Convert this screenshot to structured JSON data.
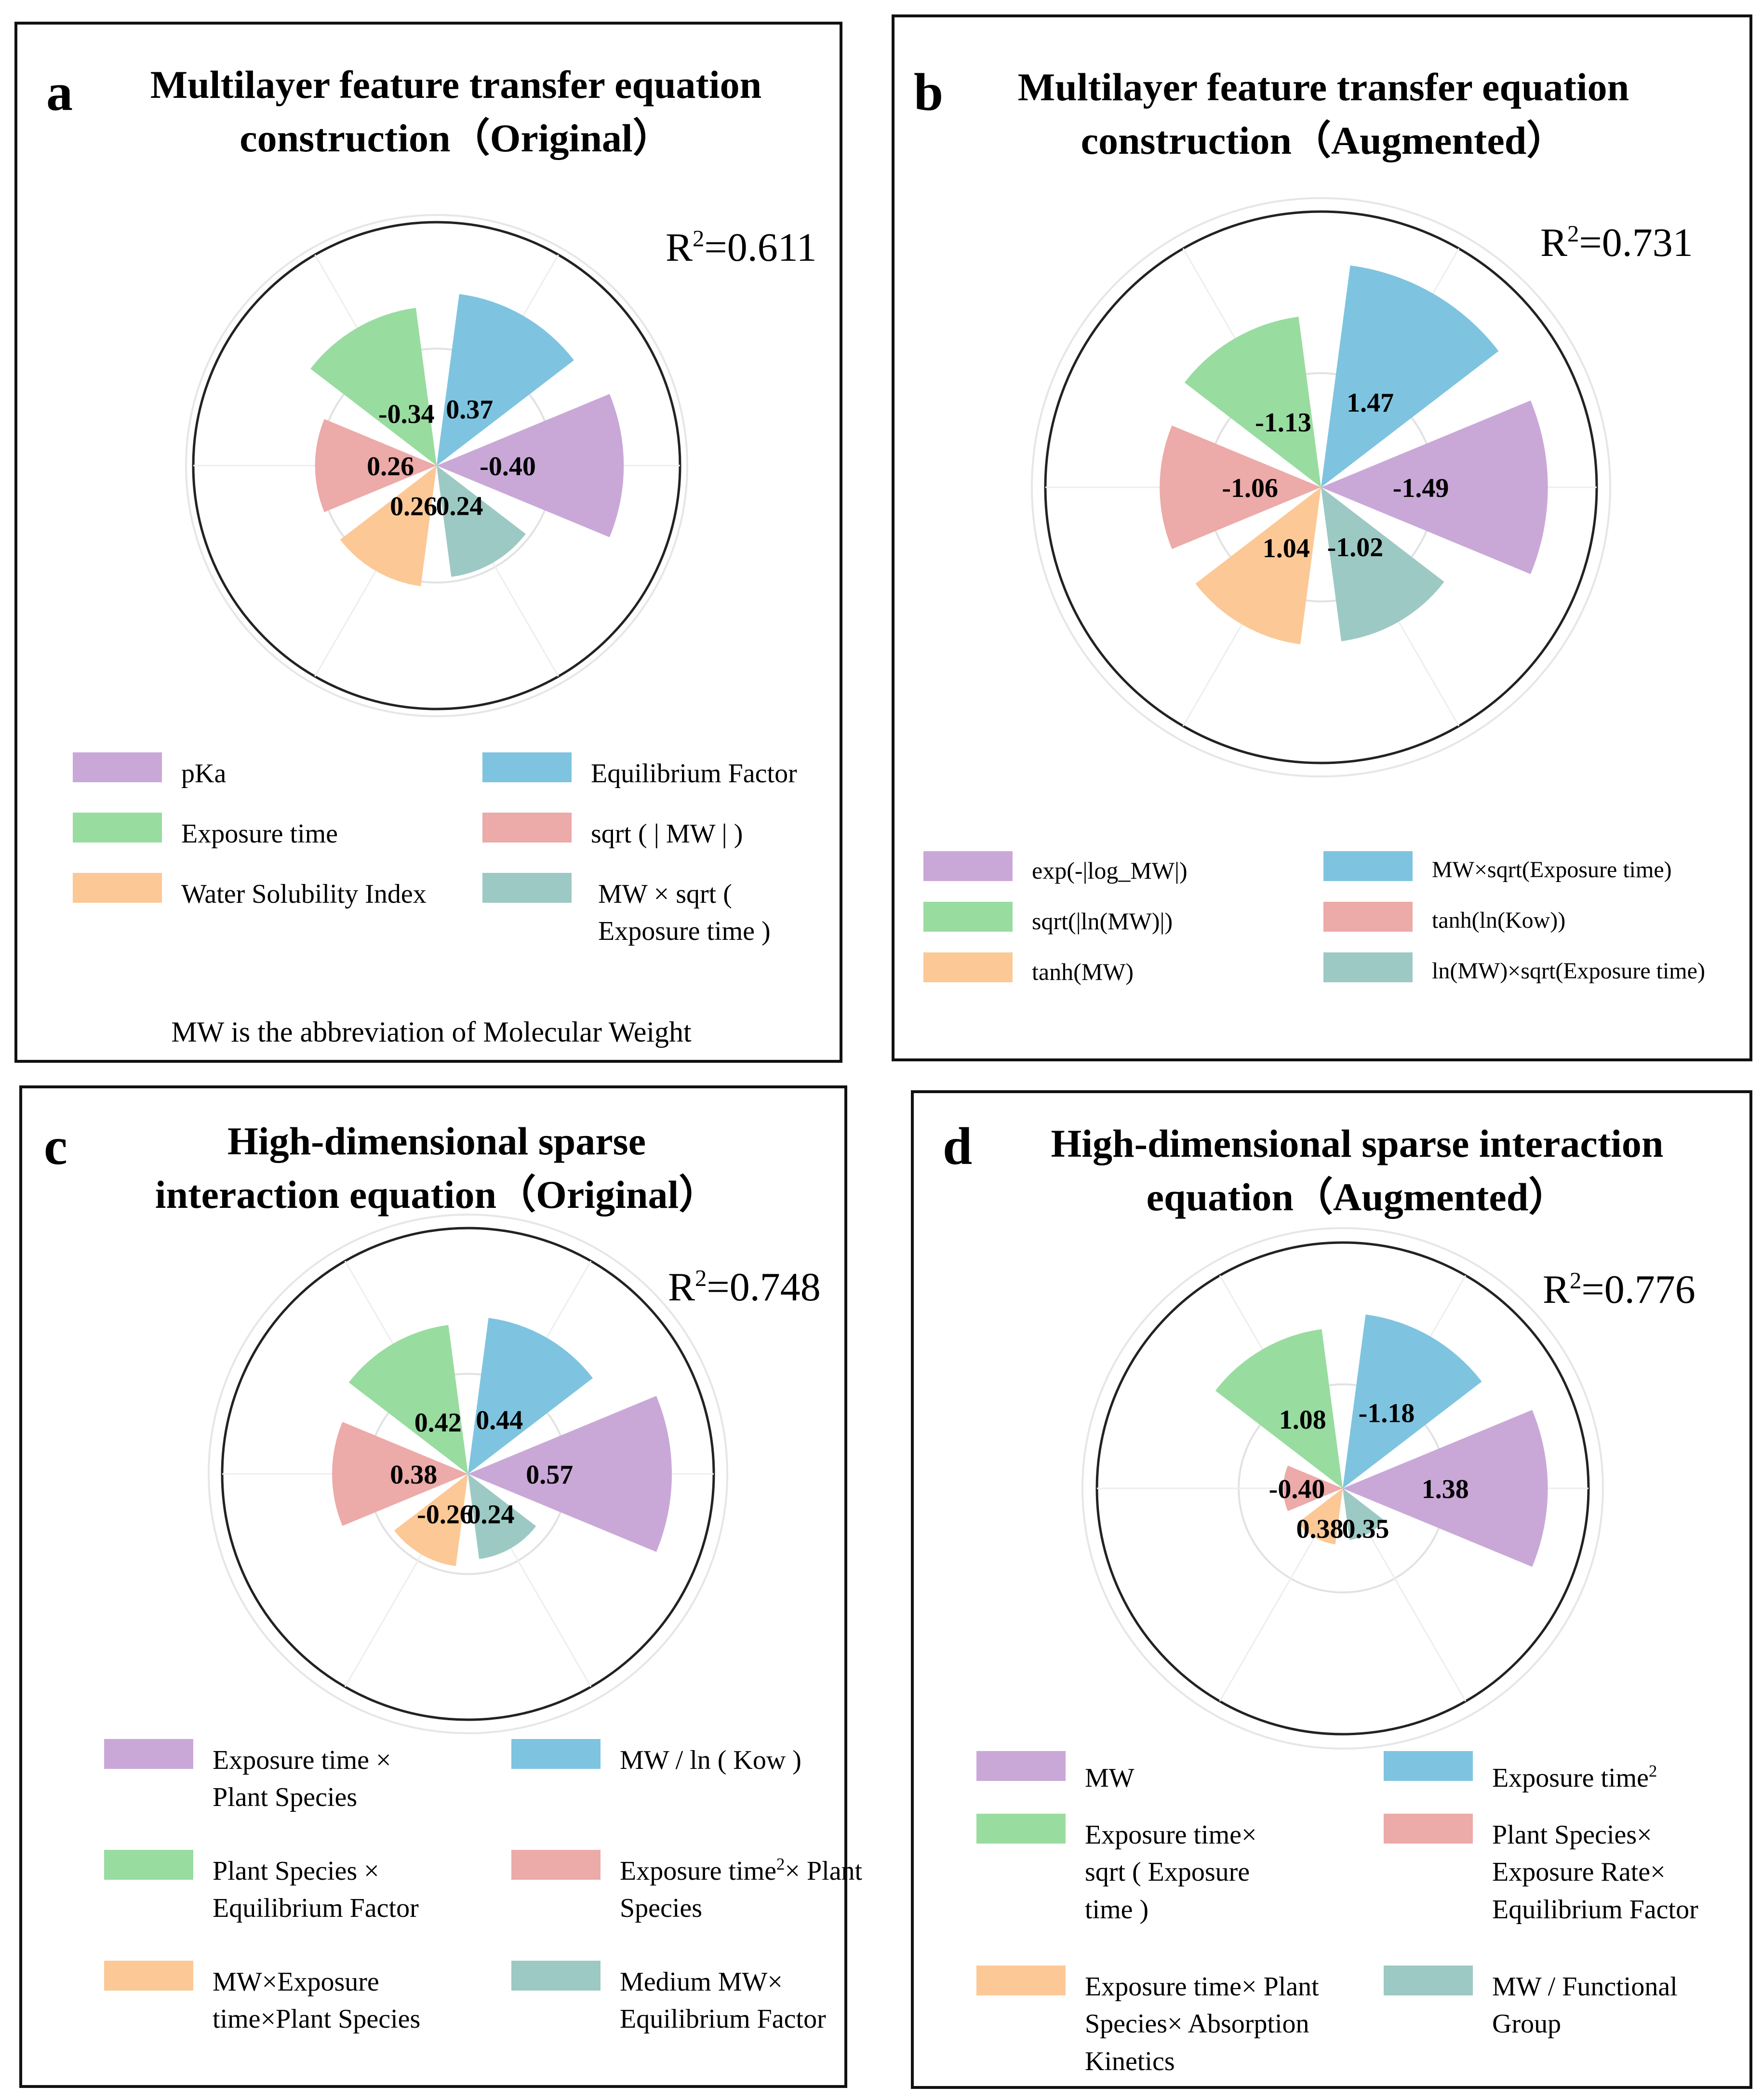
{
  "panels": [
    {
      "id": "a",
      "letter": "a",
      "title_line1": "Multilayer feature transfer equation",
      "title_line2": "construction（Original）",
      "r2_label": "R",
      "r2_sup": "2",
      "r2_value": "=0.611",
      "note": "MW is the abbreviation of Molecular Weight",
      "legend": [
        {
          "label": "pKa",
          "sup": "",
          "color": "#c9a8d8"
        },
        {
          "label": "Equilibrium Factor",
          "sup": "",
          "color": "#7ec4e0"
        },
        {
          "label": "Exposure time",
          "sup": "",
          "color": "#98dca0"
        },
        {
          "label": "sqrt ( | MW | )",
          "sup": "",
          "color": "#ecaaa8"
        },
        {
          "label": "Water Solubility Index",
          "sup": "",
          "color": "#fcc896"
        },
        {
          "label": "MW × sqrt ( Exposure time )",
          "sup": "",
          "color": "#9cc9c4"
        }
      ]
    },
    {
      "id": "b",
      "letter": "b",
      "title_line1": "Multilayer feature transfer equation",
      "title_line2": "construction（Augmented）",
      "r2_label": "R",
      "r2_sup": "2",
      "r2_value": "=0.731",
      "legend": [
        {
          "label": "exp(-|log_MW|)",
          "sup": "",
          "color": "#c9a8d8"
        },
        {
          "label": "MW×sqrt(Exposure time)",
          "sup": "",
          "color": "#7ec4e0"
        },
        {
          "label": "sqrt(|ln(MW)|)",
          "sup": "",
          "color": "#98dca0"
        },
        {
          "label": "tanh(ln(Kow))",
          "sup": "",
          "color": "#ecaaa8"
        },
        {
          "label": "tanh(MW)",
          "sup": "",
          "color": "#fcc896"
        },
        {
          "label": "ln(MW)×sqrt(Exposure time)",
          "sup": "",
          "color": "#9cc9c4"
        }
      ]
    },
    {
      "id": "c",
      "letter": "c",
      "title_line1": "High-dimensional sparse",
      "title_line2": "interaction equation（Original）",
      "r2_label": "R",
      "r2_sup": "2",
      "r2_value": "=0.748",
      "legend": [
        {
          "label": "Exposure time × Plant Species",
          "sup": "",
          "color": "#c9a8d8"
        },
        {
          "label": "MW / ln ( Kow )",
          "sup": "",
          "color": "#7ec4e0"
        },
        {
          "label": "Plant Species × Equilibrium Factor",
          "sup": "",
          "color": "#98dca0"
        },
        {
          "label": "Exposure time",
          "sup": "2",
          "label_after": "× Plant Species",
          "color": "#ecaaa8"
        },
        {
          "label": "MW×Exposure time×Plant Species",
          "sup": "",
          "color": "#fcc896"
        },
        {
          "label": "Medium MW× Equilibrium Factor",
          "sup": "",
          "color": "#9cc9c4"
        }
      ]
    },
    {
      "id": "d",
      "letter": "d",
      "title_line1": "High-dimensional sparse interaction",
      "title_line2": "equation（Augmented）",
      "r2_label": "R",
      "r2_sup": "2",
      "r2_value": "=0.776",
      "legend": [
        {
          "label": "MW",
          "sup": "",
          "color": "#c9a8d8"
        },
        {
          "label": "Exposure time",
          "sup": "2",
          "label_after": "",
          "color": "#7ec4e0"
        },
        {
          "label": "Exposure time× sqrt ( Exposure time )",
          "sup": "",
          "color": "#98dca0"
        },
        {
          "label": "Plant Species× Exposure Rate× Equilibrium Factor",
          "sup": "",
          "color": "#ecaaa8"
        },
        {
          "label": "Exposure time× Plant Species× Absorption Kinetics",
          "sup": "",
          "color": "#fcc896"
        },
        {
          "label": "MW / Functional Group",
          "sup": "",
          "color": "#9cc9c4"
        }
      ]
    }
  ],
  "chart_data": [
    {
      "type": "polar-bar",
      "panel": "a",
      "title": "Multilayer feature transfer equation construction (Original)",
      "r_squared": 0.611,
      "categories": [
        "pKa",
        "Equilibrium Factor",
        "Exposure time",
        "sqrt ( | MW | )",
        "Water Solubility Index",
        "MW × sqrt ( Exposure time )"
      ],
      "values": [
        -0.4,
        0.37,
        -0.34,
        0.26,
        0.26,
        0.24
      ],
      "labels": [
        "-0.40",
        "0.37",
        "-0.34",
        "0.26",
        "0.26",
        "0.24"
      ],
      "angles_deg": [
        0,
        60,
        120,
        180,
        240,
        300
      ],
      "sector_width_deg": 45,
      "rlim": [
        0,
        0.51
      ],
      "grid_r": [
        0.25
      ]
    },
    {
      "type": "polar-bar",
      "panel": "b",
      "title": "Multilayer feature transfer equation construction (Augmented)",
      "r_squared": 0.731,
      "categories": [
        "exp(-|log_MW|)",
        "MW×sqrt(Exposure time)",
        "sqrt(|ln(MW)|)",
        "tanh(ln(Kow))",
        "tanh(MW)",
        "ln(MW)×sqrt(Exposure time)"
      ],
      "values": [
        -1.49,
        1.47,
        -1.13,
        -1.06,
        1.04,
        -1.02
      ],
      "labels": [
        "-1.49",
        "1.47",
        "-1.13",
        "-1.06",
        "1.04",
        "-1.02"
      ],
      "angles_deg": [
        0,
        60,
        120,
        180,
        240,
        300
      ],
      "sector_width_deg": 45,
      "rlim": [
        0,
        1.83
      ],
      "grid_r": [
        0.75
      ]
    },
    {
      "type": "polar-bar",
      "panel": "c",
      "title": "High-dimensional sparse interaction equation (Original)",
      "r_squared": 0.748,
      "categories": [
        "Exposure time × Plant Species",
        "MW / ln ( Kow )",
        "Plant Species × Equilibrium Factor",
        "Exposure time²× Plant Species",
        "MW×Exposure time×Plant Species",
        "Medium MW× Equilibrium Factor"
      ],
      "values": [
        0.57,
        0.44,
        0.42,
        0.38,
        -0.26,
        0.24
      ],
      "labels": [
        "0.57",
        "0.44",
        "0.42",
        "0.38",
        "-0.26",
        "0.24"
      ],
      "angles_deg": [
        0,
        60,
        120,
        180,
        240,
        300
      ],
      "sector_width_deg": 45,
      "rlim": [
        0,
        0.69
      ],
      "grid_r": [
        0.28
      ]
    },
    {
      "type": "polar-bar",
      "panel": "d",
      "title": "High-dimensional sparse interaction equation (Augmented)",
      "r_squared": 0.776,
      "categories": [
        "MW",
        "Exposure time²",
        "Exposure time× sqrt ( Exposure time )",
        "Plant Species× Exposure Rate× Equilibrium Factor",
        "Exposure time× Plant Species× Absorption Kinetics",
        "MW / Functional Group"
      ],
      "values": [
        1.38,
        -1.18,
        1.08,
        -0.4,
        0.38,
        0.35
      ],
      "labels": [
        "1.38",
        "-1.18",
        "1.08",
        "-0.40",
        "0.38",
        "0.35"
      ],
      "angles_deg": [
        0,
        60,
        120,
        180,
        240,
        300
      ],
      "sector_width_deg": 45,
      "rlim": [
        0,
        1.68
      ],
      "grid_r": [
        0.7
      ]
    }
  ]
}
